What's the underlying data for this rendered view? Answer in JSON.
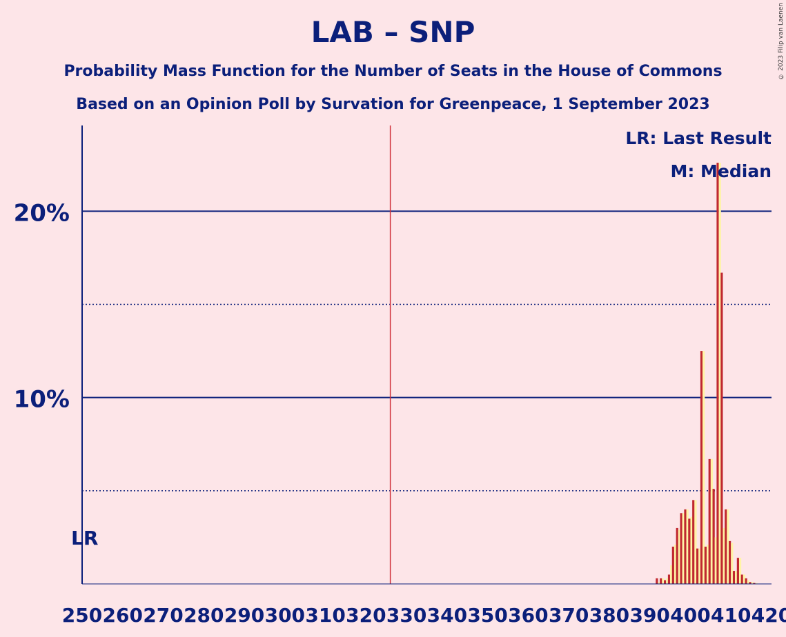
{
  "title": "LAB – SNP",
  "subtitle1": "Probability Mass Function for the Number of Seats in the House of Commons",
  "subtitle2": "Based on an Opinion Poll by Survation for Greenpeace, 1 September 2023",
  "copyright": "© 2023 Filip van Laenen",
  "legend": {
    "lr": "LR: Last Result",
    "median": "M: Median"
  },
  "lr_marker": "LR",
  "colors": {
    "bar_red": "#C0282F",
    "bar_yellow": "#FFF4A6",
    "axis": "#0B1F7A",
    "majority_line": "#D0303A"
  },
  "chart_data": {
    "type": "bar",
    "xlim": [
      250,
      420
    ],
    "ylim": [
      0,
      24.6
    ],
    "x_ticks": [
      250,
      260,
      270,
      280,
      290,
      300,
      310,
      320,
      330,
      340,
      350,
      360,
      370,
      380,
      390,
      400,
      410,
      420
    ],
    "y_ticks": [
      {
        "value": 10,
        "label": "10%"
      },
      {
        "value": 20,
        "label": "20%"
      }
    ],
    "dotted_gridlines": [
      5,
      15
    ],
    "majority_line": 326,
    "last_result": 250,
    "median": 406,
    "series": [
      {
        "seats": [
          392,
          393,
          394,
          395,
          396,
          397,
          398,
          399,
          400,
          401,
          402,
          403,
          404,
          405,
          406,
          407,
          408,
          409,
          410,
          411,
          412,
          413,
          414,
          415,
          416
        ],
        "red": [
          0.3,
          0.3,
          0.2,
          0.5,
          2.0,
          3.0,
          3.8,
          4.0,
          3.5,
          4.5,
          1.9,
          12.5,
          2.0,
          6.7,
          5.1,
          22.6,
          16.7,
          4.0,
          2.3,
          0.7,
          1.4,
          0.5,
          0.3,
          0.1,
          0.05
        ],
        "yellow": [
          0.1,
          0.3,
          0.3,
          1.0,
          2.1,
          2.9,
          3.8,
          4.0,
          3.6,
          4.5,
          1.9,
          12.5,
          2.1,
          6.7,
          2.5,
          22.6,
          3.0,
          4.0,
          2.2,
          0.7,
          1.4,
          0.5,
          0.2,
          0.1,
          0.05
        ]
      }
    ]
  }
}
